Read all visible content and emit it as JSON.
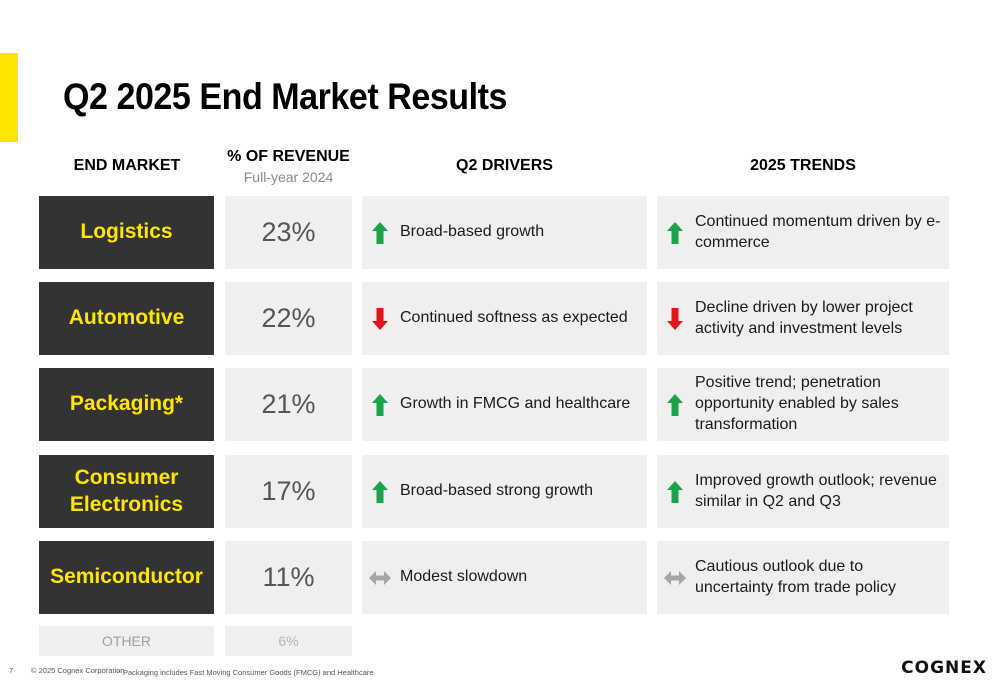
{
  "title": "Q2 2025 End Market Results",
  "headers": {
    "market": "END MARKET",
    "pct": "% OF REVENUE",
    "pct_sub": "Full-year 2024",
    "drivers": "Q2 DRIVERS",
    "trends": "2025 TRENDS"
  },
  "colors": {
    "accent": "#ffe600",
    "up": "#1aa348",
    "down": "#e3151a",
    "neutral": "#a6a6a6",
    "market_bg": "#333333",
    "cell_bg": "#efefef"
  },
  "rows": [
    {
      "market": "Logistics",
      "pct": "23%",
      "driver_dir": "up",
      "driver": "Broad-based growth",
      "trend_dir": "up",
      "trend": "Continued momentum driven by e-commerce"
    },
    {
      "market": "Automotive",
      "pct": "22%",
      "driver_dir": "down",
      "driver": "Continued softness as expected",
      "trend_dir": "down",
      "trend": "Decline driven by lower project activity and investment levels"
    },
    {
      "market": "Packaging*",
      "pct": "21%",
      "driver_dir": "up",
      "driver": "Growth in FMCG and healthcare",
      "trend_dir": "up",
      "trend": "Positive trend; penetration opportunity enabled by sales transformation"
    },
    {
      "market": "Consumer Electronics",
      "pct": "17%",
      "driver_dir": "up",
      "driver": "Broad-based strong growth",
      "trend_dir": "up",
      "trend": "Improved growth outlook; revenue similar in Q2 and Q3"
    },
    {
      "market": "Semiconductor",
      "pct": "11%",
      "driver_dir": "neutral",
      "driver": "Modest slowdown",
      "trend_dir": "neutral",
      "trend": "Cautious outlook due to uncertainty from trade policy"
    }
  ],
  "other": {
    "label": "OTHER",
    "pct": "6%"
  },
  "footer": {
    "page": "7",
    "copyright": "© 2025 Cognex Corporation",
    "footnote": "* Packaging includes Fast Moving Consumer Goods (FMCG) and Healthcare",
    "logo": "COGNEX"
  }
}
